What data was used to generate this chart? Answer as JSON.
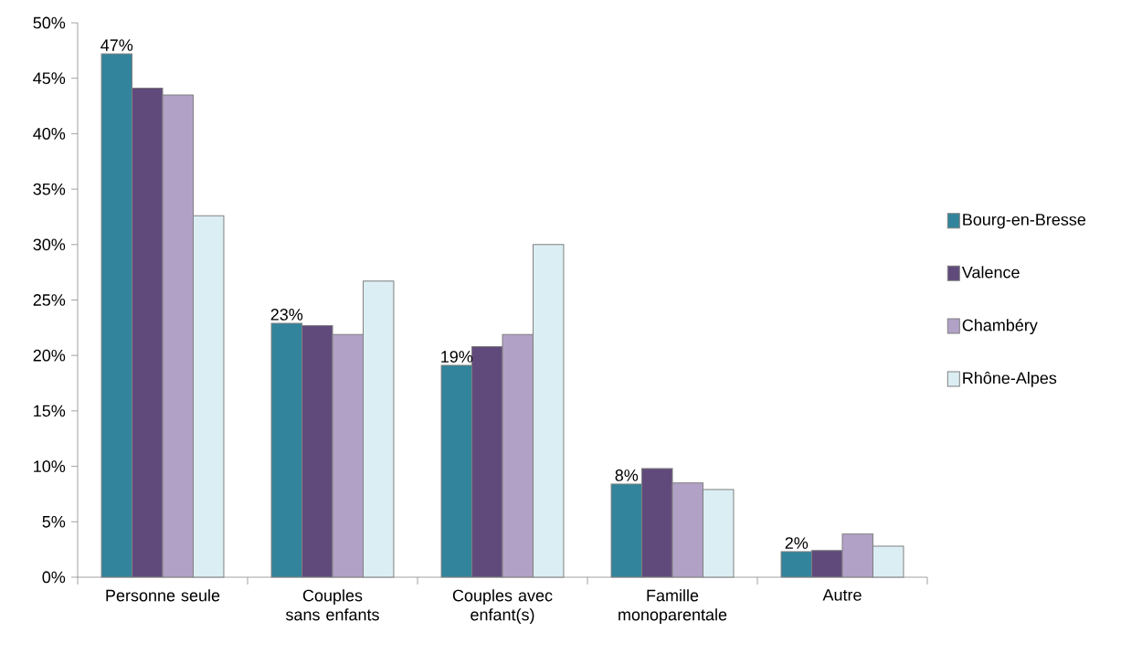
{
  "chart_data": {
    "type": "bar",
    "categories": [
      "Personne seule",
      "Couples sans enfants",
      "Couples avec enfant(s)",
      "Famille monoparentale",
      "Autre"
    ],
    "series": [
      {
        "name": "Bourg-en-Bresse",
        "color": "#31849b",
        "values": [
          47.2,
          22.9,
          19.1,
          8.4,
          2.3
        ],
        "value_labels": [
          "47%",
          "23%",
          "19%",
          "8%",
          "2%"
        ]
      },
      {
        "name": "Valence",
        "color": "#604a7b",
        "values": [
          44.1,
          22.7,
          20.8,
          9.8,
          2.4
        ]
      },
      {
        "name": "Chambéry",
        "color": "#b2a1c7",
        "values": [
          43.5,
          21.9,
          21.9,
          8.5,
          3.9
        ]
      },
      {
        "name": "Rhône-Alpes",
        "color": "#dbeef3",
        "values": [
          32.6,
          26.7,
          30.0,
          7.9,
          2.8
        ]
      }
    ],
    "ylim": [
      0,
      50
    ],
    "yticks": [
      {
        "value": 0,
        "label": "0%"
      },
      {
        "value": 5,
        "label": "5%"
      },
      {
        "value": 10,
        "label": "10%"
      },
      {
        "value": 15,
        "label": "15%"
      },
      {
        "value": 20,
        "label": "20%"
      },
      {
        "value": 25,
        "label": "25%"
      },
      {
        "value": 30,
        "label": "30%"
      },
      {
        "value": 35,
        "label": "35%"
      },
      {
        "value": 40,
        "label": "40%"
      },
      {
        "value": 45,
        "label": "45%"
      },
      {
        "value": 50,
        "label": "50%"
      }
    ],
    "grid": false,
    "legend": "right"
  }
}
